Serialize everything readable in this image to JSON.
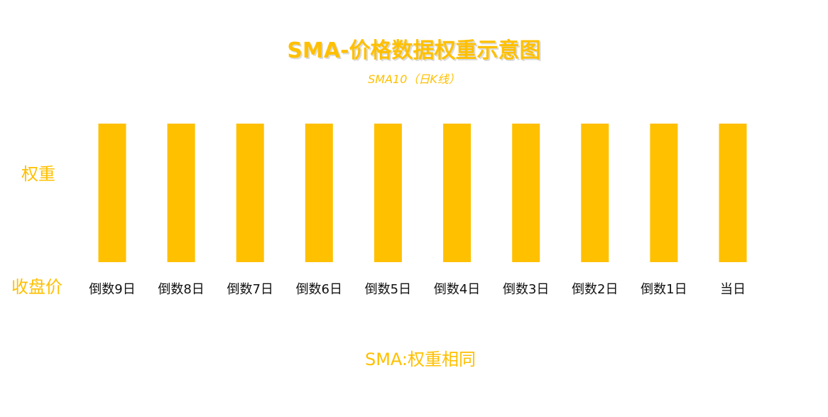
{
  "colors": {
    "accent": "#FFC000",
    "label_text": "#111111",
    "title_shadow": "#bfbfbf"
  },
  "chart_data": {
    "type": "bar",
    "title": "SMA-价格数据权重示意图",
    "subtitle": "SMA10（日K线）",
    "ylabel": "权重",
    "xlabel": "收盘价",
    "categories": [
      "倒数9日",
      "倒数8日",
      "倒数7日",
      "倒数6日",
      "倒数5日",
      "倒数4日",
      "倒数3日",
      "倒数2日",
      "倒数1日",
      "当日"
    ],
    "values": [
      1,
      1,
      1,
      1,
      1,
      1,
      1,
      1,
      1,
      1
    ],
    "ylim": [
      0,
      1
    ],
    "grid": false,
    "legend": "none",
    "caption": "SMA:权重相同"
  }
}
